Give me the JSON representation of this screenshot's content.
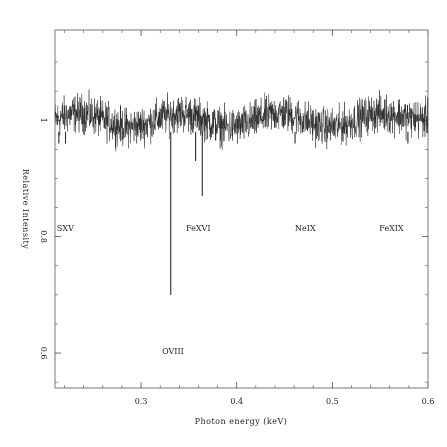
{
  "chart_data": {
    "type": "line",
    "title": "",
    "xlabel": "Photon energy (keV)",
    "ylabel": "Relative Intensity",
    "xlim": [
      0.21,
      0.6
    ],
    "ylim": [
      0.54,
      1.155
    ],
    "x_ticks": [
      {
        "value": 0.3,
        "label": "0.3"
      },
      {
        "value": 0.4,
        "label": "0.4"
      },
      {
        "value": 0.5,
        "label": "0.5"
      },
      {
        "value": 0.6,
        "label": "0.6"
      }
    ],
    "y_ticks": [
      {
        "value": 0.6,
        "label": "0.6"
      },
      {
        "value": 0.8,
        "label": "0.8"
      },
      {
        "value": 1.0,
        "label": "1"
      }
    ],
    "continuum_level": 1.0,
    "noise_amplitude": 0.02,
    "absorption_lines": [
      {
        "x": 0.214,
        "depth": 0.96
      },
      {
        "x": 0.221,
        "depth": 0.96
      },
      {
        "x": 0.331,
        "depth": 0.7
      },
      {
        "x": 0.357,
        "depth": 0.93
      },
      {
        "x": 0.364,
        "depth": 0.87
      },
      {
        "x": 0.461,
        "depth": 0.96
      },
      {
        "x": 0.579,
        "depth": 0.96
      }
    ],
    "annotations": [
      {
        "text": "SXV",
        "x": 0.212,
        "y": 0.81
      },
      {
        "text": "FeXVI",
        "x": 0.347,
        "y": 0.81
      },
      {
        "text": "NeIX",
        "x": 0.461,
        "y": 0.81
      },
      {
        "text": "FeXIX",
        "x": 0.549,
        "y": 0.81
      },
      {
        "text": "OVIII",
        "x": 0.322,
        "y": 0.598
      }
    ],
    "grid": false,
    "legend": "none"
  },
  "colors": {
    "line": "#2a2a2a",
    "axis": "#555555",
    "text": "#222222"
  }
}
